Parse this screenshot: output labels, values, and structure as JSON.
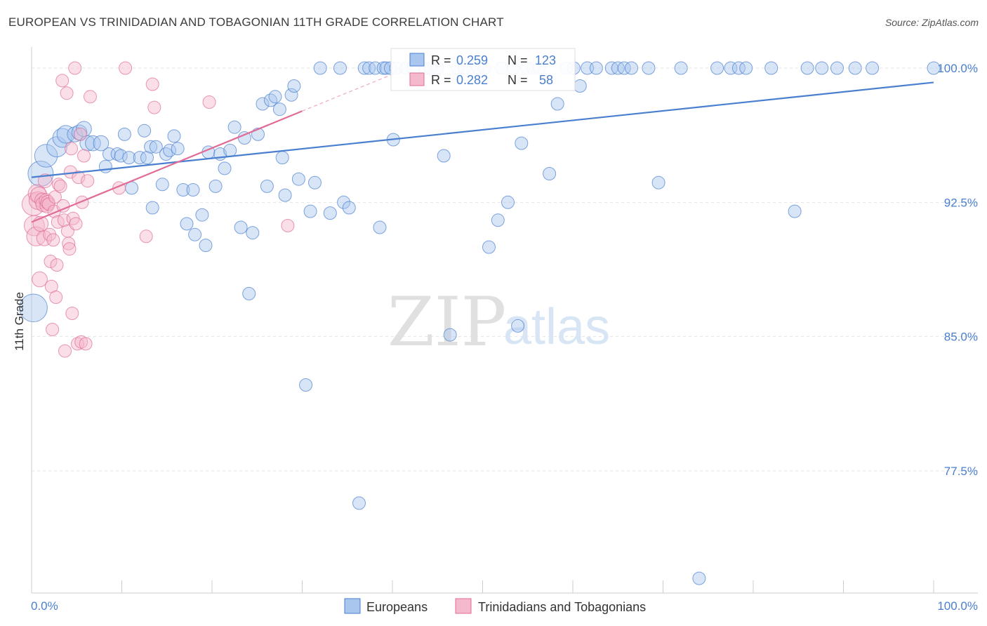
{
  "title": "EUROPEAN VS TRINIDADIAN AND TOBAGONIAN 11TH GRADE CORRELATION CHART",
  "source": "Source: ZipAtlas.com",
  "colors": {
    "blue": "#4a7fd0",
    "blue_fill": "#a9c6ee",
    "pink": "#e06c97",
    "pink_fill": "#f5b9cd"
  },
  "chart_data": {
    "type": "scatter",
    "title": "EUROPEAN VS TRINIDADIAN AND TOBAGONIAN 11TH GRADE CORRELATION CHART",
    "xlabel": "",
    "ylabel": "11th Grade",
    "xlim": [
      0,
      100
    ],
    "ylim": [
      70.0,
      101.5
    ],
    "x_tick_labels": [
      "0.0%",
      "100.0%"
    ],
    "y_ticks": [
      77.5,
      85.0,
      92.5,
      100.0
    ],
    "y_tick_labels": [
      "77.5%",
      "85.0%",
      "92.5%",
      "100.0%"
    ],
    "grid": true,
    "watermark": {
      "left": "ZIP",
      "right": "atlas"
    },
    "stats": [
      {
        "series": "Europeans",
        "r_label": "R =",
        "r": "0.259",
        "n_label": "N =",
        "n": "123"
      },
      {
        "series": "Trinidadians and Tobagonians",
        "r_label": "R =",
        "r": "0.282",
        "n_label": "N =",
        "n": "58"
      }
    ],
    "legend": [
      "Europeans",
      "Trinidadians and Tobagonians"
    ],
    "series": [
      {
        "name": "Europeans",
        "color": "#4a7fd0",
        "trend": {
          "x": [
            0,
            100
          ],
          "y": [
            93.9,
            99.2
          ]
        },
        "points": [
          [
            0.2,
            86.6,
            2.2
          ],
          [
            1.0,
            94.1,
            2.0
          ],
          [
            1.6,
            95.1,
            1.8
          ],
          [
            2.8,
            95.6,
            1.6
          ],
          [
            3.4,
            96.1,
            1.5
          ],
          [
            3.8,
            96.3,
            1.4
          ],
          [
            4.8,
            96.3,
            1.2
          ],
          [
            5.3,
            96.4,
            1.2
          ],
          [
            5.8,
            96.6,
            1.2
          ],
          [
            6.2,
            95.8,
            1.2
          ],
          [
            6.8,
            95.8,
            1.2
          ],
          [
            7.7,
            95.8,
            1.2
          ],
          [
            8.2,
            94.5,
            1.0
          ],
          [
            8.6,
            95.2,
            1.0
          ],
          [
            9.5,
            95.2,
            1.0
          ],
          [
            9.9,
            95.1,
            1.0
          ],
          [
            10.3,
            96.3,
            1.0
          ],
          [
            10.8,
            95.0,
            1.0
          ],
          [
            11.1,
            93.3,
            1.0
          ],
          [
            12.0,
            95.0,
            1.0
          ],
          [
            12.5,
            96.5,
            1.0
          ],
          [
            12.8,
            95.0,
            1.0
          ],
          [
            13.2,
            95.6,
            1.0
          ],
          [
            13.4,
            92.2,
            1.0
          ],
          [
            13.8,
            95.6,
            1.0
          ],
          [
            14.5,
            93.5,
            1.0
          ],
          [
            14.9,
            95.2,
            1.0
          ],
          [
            15.3,
            95.4,
            1.0
          ],
          [
            15.8,
            96.2,
            1.0
          ],
          [
            16.2,
            95.5,
            1.0
          ],
          [
            16.8,
            93.2,
            1.0
          ],
          [
            17.2,
            91.3,
            1.0
          ],
          [
            17.9,
            93.2,
            1.0
          ],
          [
            18.1,
            90.7,
            1.0
          ],
          [
            18.9,
            91.8,
            1.0
          ],
          [
            19.3,
            90.1,
            1.0
          ],
          [
            19.6,
            95.3,
            1.0
          ],
          [
            20.4,
            93.4,
            1.0
          ],
          [
            20.9,
            95.2,
            1.0
          ],
          [
            21.4,
            94.4,
            1.0
          ],
          [
            22.0,
            95.4,
            1.0
          ],
          [
            22.5,
            96.7,
            1.0
          ],
          [
            23.2,
            91.1,
            1.0
          ],
          [
            23.6,
            96.1,
            1.0
          ],
          [
            24.1,
            87.4,
            1.0
          ],
          [
            24.5,
            90.8,
            1.0
          ],
          [
            25.1,
            96.3,
            1.0
          ],
          [
            25.6,
            98.0,
            1.0
          ],
          [
            26.1,
            93.4,
            1.0
          ],
          [
            26.5,
            98.2,
            1.0
          ],
          [
            27.0,
            98.4,
            1.0
          ],
          [
            27.5,
            97.7,
            1.0
          ],
          [
            27.8,
            95.0,
            1.0
          ],
          [
            28.1,
            92.9,
            1.0
          ],
          [
            28.8,
            98.5,
            1.0
          ],
          [
            29.1,
            99.0,
            1.0
          ],
          [
            29.6,
            93.8,
            1.0
          ],
          [
            30.4,
            82.3,
            1.0
          ],
          [
            30.9,
            92.0,
            1.0
          ],
          [
            31.4,
            93.6,
            1.0
          ],
          [
            32.0,
            100.0,
            1.0
          ],
          [
            33.1,
            91.9,
            1.0
          ],
          [
            34.2,
            100.0,
            1.0
          ],
          [
            34.6,
            92.5,
            1.0
          ],
          [
            35.2,
            92.2,
            1.0
          ],
          [
            36.3,
            75.7,
            1.0
          ],
          [
            36.9,
            100.0,
            1.0
          ],
          [
            37.4,
            100.0,
            1.0
          ],
          [
            38.1,
            100.0,
            1.0
          ],
          [
            38.6,
            91.1,
            1.0
          ],
          [
            39.0,
            100.0,
            1.0
          ],
          [
            39.3,
            100.0,
            1.0
          ],
          [
            39.8,
            100.0,
            1.0
          ],
          [
            40.1,
            96.0,
            1.0
          ],
          [
            40.4,
            100.0,
            1.0
          ],
          [
            41.5,
            100.0,
            1.0
          ],
          [
            42.3,
            100.0,
            1.0
          ],
          [
            43.6,
            100.0,
            1.0
          ],
          [
            44.2,
            100.0,
            1.0
          ],
          [
            45.0,
            100.0,
            1.0
          ],
          [
            45.7,
            95.1,
            1.0
          ],
          [
            46.4,
            85.1,
            1.0
          ],
          [
            47.2,
            100.0,
            1.0
          ],
          [
            48.0,
            100.0,
            1.0
          ],
          [
            49.5,
            100.0,
            1.0
          ],
          [
            50.2,
            100.0,
            1.0
          ],
          [
            50.7,
            90.0,
            1.0
          ],
          [
            51.7,
            91.5,
            1.0
          ],
          [
            52.1,
            100.0,
            1.0
          ],
          [
            52.8,
            92.5,
            1.0
          ],
          [
            53.4,
            100.0,
            1.0
          ],
          [
            53.9,
            85.6,
            1.0
          ],
          [
            54.3,
            95.8,
            1.0
          ],
          [
            54.9,
            100.0,
            1.0
          ],
          [
            55.6,
            100.0,
            1.0
          ],
          [
            56.3,
            100.0,
            1.0
          ],
          [
            57.4,
            94.1,
            1.0
          ],
          [
            58.3,
            98.0,
            1.0
          ],
          [
            59.3,
            100.0,
            1.0
          ],
          [
            60.1,
            100.0,
            1.0
          ],
          [
            60.8,
            99.0,
            1.0
          ],
          [
            61.6,
            100.0,
            1.0
          ],
          [
            62.6,
            100.0,
            1.0
          ],
          [
            64.3,
            100.0,
            1.0
          ],
          [
            65.0,
            100.0,
            1.0
          ],
          [
            65.7,
            100.0,
            1.0
          ],
          [
            66.5,
            100.0,
            1.0
          ],
          [
            68.4,
            100.0,
            1.0
          ],
          [
            69.5,
            93.6,
            1.0
          ],
          [
            72.0,
            100.0,
            1.0
          ],
          [
            74.0,
            71.5,
            1.0
          ],
          [
            76.0,
            100.0,
            1.0
          ],
          [
            77.5,
            100.0,
            1.0
          ],
          [
            78.4,
            100.0,
            1.0
          ],
          [
            79.2,
            100.0,
            1.0
          ],
          [
            82.0,
            100.0,
            1.0
          ],
          [
            84.6,
            92.0,
            1.0
          ],
          [
            86.0,
            100.0,
            1.0
          ],
          [
            87.6,
            100.0,
            1.0
          ],
          [
            89.3,
            100.0,
            1.0
          ],
          [
            91.3,
            100.0,
            1.0
          ],
          [
            93.2,
            100.0,
            1.0
          ],
          [
            100.0,
            100.0,
            1.0
          ]
        ]
      },
      {
        "name": "Trinidadians and Tobagonians",
        "color": "#e06c97",
        "trend": {
          "x": [
            0,
            30
          ],
          "y": [
            91.4,
            97.6
          ]
        },
        "trend_dashed_to": {
          "x": 40,
          "y": 99.65
        },
        "points": [
          [
            0.2,
            92.4,
            1.8
          ],
          [
            0.3,
            91.2,
            1.6
          ],
          [
            0.5,
            90.6,
            1.5
          ],
          [
            0.6,
            93.0,
            1.4
          ],
          [
            0.7,
            92.6,
            1.4
          ],
          [
            0.8,
            92.9,
            1.3
          ],
          [
            0.9,
            88.2,
            1.2
          ],
          [
            1.0,
            91.3,
            1.2
          ],
          [
            1.2,
            92.6,
            1.2
          ],
          [
            1.3,
            92.4,
            1.2
          ],
          [
            1.4,
            90.5,
            1.2
          ],
          [
            1.5,
            93.7,
            1.1
          ],
          [
            1.6,
            92.6,
            1.1
          ],
          [
            1.7,
            92.3,
            1.1
          ],
          [
            1.8,
            92.5,
            1.1
          ],
          [
            1.9,
            92.4,
            1.0
          ],
          [
            2.0,
            90.7,
            1.0
          ],
          [
            2.1,
            89.2,
            1.0
          ],
          [
            2.2,
            87.8,
            1.0
          ],
          [
            2.3,
            85.4,
            1.0
          ],
          [
            2.4,
            90.4,
            1.0
          ],
          [
            2.5,
            92.0,
            1.0
          ],
          [
            2.6,
            92.8,
            1.0
          ],
          [
            2.7,
            87.2,
            1.0
          ],
          [
            2.8,
            89.0,
            1.0
          ],
          [
            2.9,
            91.4,
            1.0
          ],
          [
            3.0,
            93.5,
            1.0
          ],
          [
            3.2,
            93.4,
            1.0
          ],
          [
            3.4,
            99.3,
            1.0
          ],
          [
            3.5,
            92.3,
            1.0
          ],
          [
            3.6,
            91.5,
            1.0
          ],
          [
            3.7,
            84.2,
            1.0
          ],
          [
            3.9,
            98.6,
            1.0
          ],
          [
            4.0,
            90.9,
            1.0
          ],
          [
            4.1,
            90.2,
            1.0
          ],
          [
            4.2,
            89.9,
            1.0
          ],
          [
            4.3,
            94.2,
            1.0
          ],
          [
            4.4,
            95.5,
            1.0
          ],
          [
            4.5,
            86.3,
            1.0
          ],
          [
            4.6,
            91.6,
            1.0
          ],
          [
            4.8,
            100.0,
            1.0
          ],
          [
            4.9,
            91.3,
            1.0
          ],
          [
            5.1,
            84.6,
            1.0
          ],
          [
            5.2,
            93.9,
            1.0
          ],
          [
            5.4,
            96.3,
            1.0
          ],
          [
            5.5,
            84.7,
            1.0
          ],
          [
            5.6,
            92.5,
            1.0
          ],
          [
            5.8,
            95.1,
            1.0
          ],
          [
            6.0,
            84.6,
            1.0
          ],
          [
            6.2,
            93.7,
            1.0
          ],
          [
            6.5,
            98.4,
            1.0
          ],
          [
            9.7,
            93.3,
            1.0
          ],
          [
            10.4,
            100.0,
            1.0
          ],
          [
            12.7,
            90.6,
            1.0
          ],
          [
            13.4,
            99.1,
            1.0
          ],
          [
            13.6,
            97.8,
            1.0
          ],
          [
            19.7,
            98.1,
            1.0
          ],
          [
            28.4,
            91.2,
            1.0
          ]
        ]
      }
    ]
  }
}
